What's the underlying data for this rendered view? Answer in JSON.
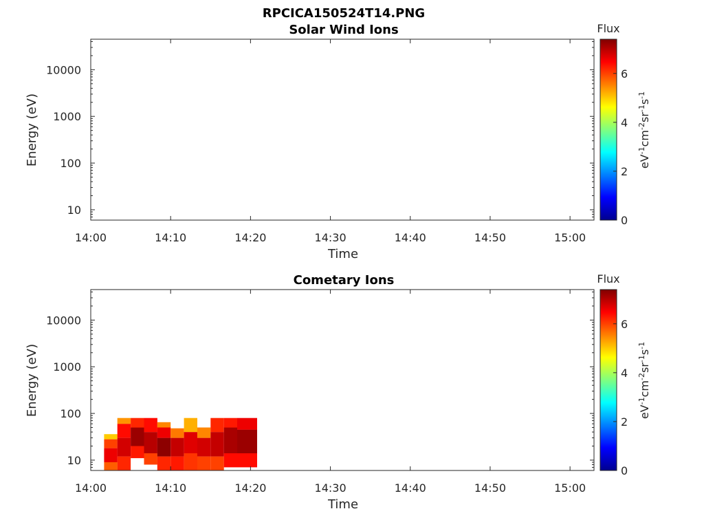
{
  "figure_title": "RPCICA150524T14.PNG",
  "colorbar": {
    "label": "Flux",
    "unit": "eV<sup>-1</sup>cm<sup>-2</sup>sr<sup>-1</sup>s<sup>-1</sup>",
    "ticks": [
      "0",
      "2",
      "4",
      "6"
    ],
    "range": [
      0,
      7.4
    ],
    "colormap": "jet"
  },
  "chart_data": [
    {
      "type": "heatmap",
      "title": "Solar Wind Ions",
      "xlabel": "Time",
      "ylabel": "Energy (eV)",
      "x_ticks": [
        "14:00",
        "14:10",
        "14:20",
        "14:30",
        "14:40",
        "14:50",
        "15:00"
      ],
      "x_range": [
        "14:00",
        "15:03"
      ],
      "y_ticks": [
        "10",
        "100",
        "1000",
        "10000"
      ],
      "y_range": [
        6,
        45000
      ],
      "y_scale": "log",
      "cells": []
    },
    {
      "type": "heatmap",
      "title": "Cometary Ions",
      "xlabel": "Time",
      "ylabel": "Energy (eV)",
      "x_ticks": [
        "14:00",
        "14:10",
        "14:20",
        "14:30",
        "14:40",
        "14:50",
        "15:00"
      ],
      "x_range": [
        "14:00",
        "15:03"
      ],
      "y_ticks": [
        "10",
        "100",
        "1000",
        "10000"
      ],
      "y_range": [
        6,
        45000
      ],
      "y_scale": "log",
      "cells": [
        {
          "t0": "14:01:40",
          "t1": "14:03:20",
          "e0": 6,
          "e1": 9,
          "flux": 5.8
        },
        {
          "t0": "14:01:40",
          "t1": "14:03:20",
          "e0": 9,
          "e1": 18,
          "flux": 6.6
        },
        {
          "t0": "14:01:40",
          "t1": "14:03:20",
          "e0": 18,
          "e1": 28,
          "flux": 6.0
        },
        {
          "t0": "14:01:40",
          "t1": "14:03:20",
          "e0": 28,
          "e1": 36,
          "flux": 5.0
        },
        {
          "t0": "14:03:20",
          "t1": "14:05:00",
          "e0": 6,
          "e1": 12,
          "flux": 6.2
        },
        {
          "t0": "14:03:20",
          "t1": "14:05:00",
          "e0": 12,
          "e1": 30,
          "flux": 6.8
        },
        {
          "t0": "14:03:20",
          "t1": "14:05:00",
          "e0": 30,
          "e1": 60,
          "flux": 6.4
        },
        {
          "t0": "14:03:20",
          "t1": "14:05:00",
          "e0": 60,
          "e1": 80,
          "flux": 5.4
        },
        {
          "t0": "14:05:00",
          "t1": "14:06:40",
          "e0": 11,
          "e1": 20,
          "flux": 6.3
        },
        {
          "t0": "14:05:00",
          "t1": "14:06:40",
          "e0": 20,
          "e1": 50,
          "flux": 7.2
        },
        {
          "t0": "14:05:00",
          "t1": "14:06:40",
          "e0": 50,
          "e1": 80,
          "flux": 6.2
        },
        {
          "t0": "14:06:40",
          "t1": "14:08:20",
          "e0": 8,
          "e1": 14,
          "flux": 6.0
        },
        {
          "t0": "14:06:40",
          "t1": "14:08:20",
          "e0": 14,
          "e1": 40,
          "flux": 7.0
        },
        {
          "t0": "14:06:40",
          "t1": "14:08:20",
          "e0": 40,
          "e1": 80,
          "flux": 6.4
        },
        {
          "t0": "14:08:20",
          "t1": "14:10:00",
          "e0": 6,
          "e1": 12,
          "flux": 6.2
        },
        {
          "t0": "14:08:20",
          "t1": "14:10:00",
          "e0": 12,
          "e1": 30,
          "flux": 7.3
        },
        {
          "t0": "14:08:20",
          "t1": "14:10:00",
          "e0": 30,
          "e1": 50,
          "flux": 6.6
        },
        {
          "t0": "14:08:20",
          "t1": "14:10:00",
          "e0": 50,
          "e1": 65,
          "flux": 5.5
        },
        {
          "t0": "14:10:00",
          "t1": "14:11:40",
          "e0": 6,
          "e1": 12,
          "flux": 6.3
        },
        {
          "t0": "14:10:00",
          "t1": "14:11:40",
          "e0": 12,
          "e1": 30,
          "flux": 6.9
        },
        {
          "t0": "14:10:00",
          "t1": "14:11:40",
          "e0": 30,
          "e1": 48,
          "flux": 5.6
        },
        {
          "t0": "14:11:40",
          "t1": "14:13:20",
          "e0": 6,
          "e1": 14,
          "flux": 6.1
        },
        {
          "t0": "14:11:40",
          "t1": "14:13:20",
          "e0": 14,
          "e1": 40,
          "flux": 6.7
        },
        {
          "t0": "14:11:40",
          "t1": "14:13:20",
          "e0": 40,
          "e1": 80,
          "flux": 5.2
        },
        {
          "t0": "14:13:20",
          "t1": "14:15:00",
          "e0": 6,
          "e1": 12,
          "flux": 6.0
        },
        {
          "t0": "14:13:20",
          "t1": "14:15:00",
          "e0": 12,
          "e1": 30,
          "flux": 6.8
        },
        {
          "t0": "14:13:20",
          "t1": "14:15:00",
          "e0": 30,
          "e1": 50,
          "flux": 5.5
        },
        {
          "t0": "14:15:00",
          "t1": "14:16:40",
          "e0": 6,
          "e1": 12,
          "flux": 6.0
        },
        {
          "t0": "14:15:00",
          "t1": "14:16:40",
          "e0": 12,
          "e1": 40,
          "flux": 6.9
        },
        {
          "t0": "14:15:00",
          "t1": "14:16:40",
          "e0": 40,
          "e1": 80,
          "flux": 6.2
        },
        {
          "t0": "14:16:40",
          "t1": "14:18:20",
          "e0": 7,
          "e1": 14,
          "flux": 6.4
        },
        {
          "t0": "14:16:40",
          "t1": "14:18:20",
          "e0": 14,
          "e1": 50,
          "flux": 7.1
        },
        {
          "t0": "14:16:40",
          "t1": "14:18:20",
          "e0": 50,
          "e1": 80,
          "flux": 6.3
        },
        {
          "t0": "14:18:20",
          "t1": "14:20:50",
          "e0": 7,
          "e1": 14,
          "flux": 6.4
        },
        {
          "t0": "14:18:20",
          "t1": "14:20:50",
          "e0": 14,
          "e1": 45,
          "flux": 7.2
        },
        {
          "t0": "14:18:20",
          "t1": "14:20:50",
          "e0": 45,
          "e1": 80,
          "flux": 6.6
        }
      ]
    }
  ]
}
